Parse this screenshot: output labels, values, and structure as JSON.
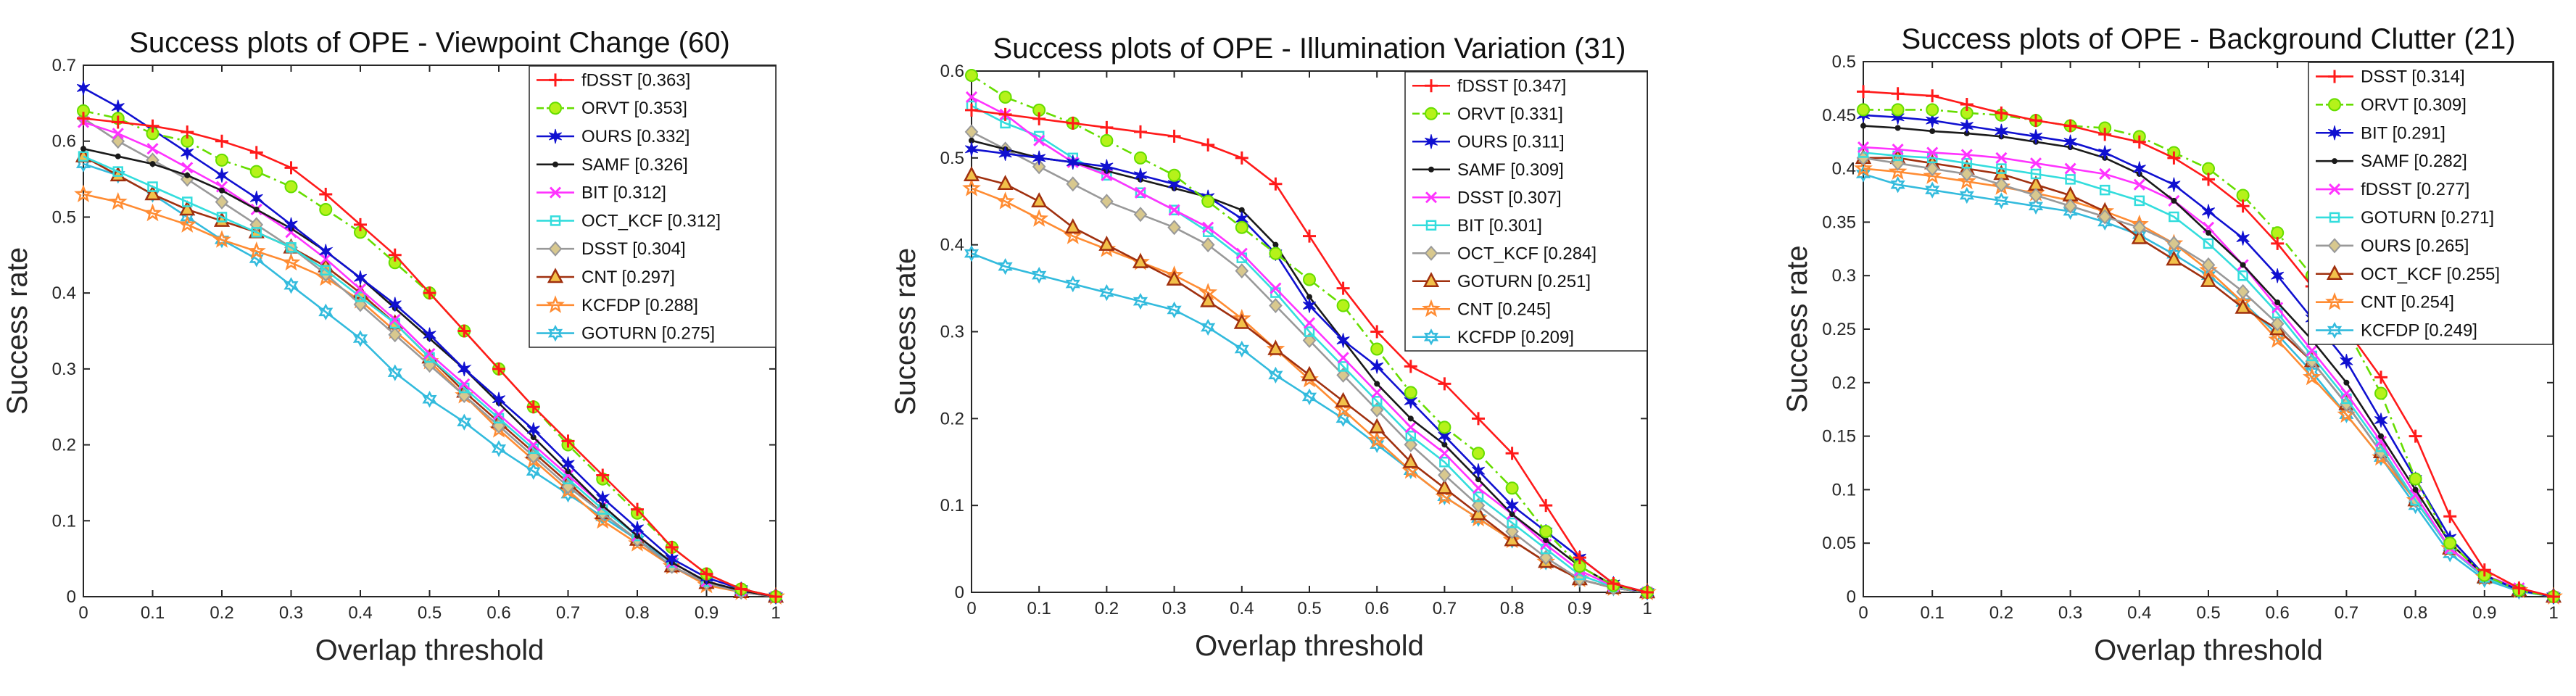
{
  "figure": {
    "panels_label": "success plots"
  },
  "chart_data": [
    {
      "type": "line",
      "title": "Success plots of OPE - Viewpoint Change (60)",
      "xlabel": "Overlap threshold",
      "ylabel": "Success rate",
      "xlim": [
        0,
        1
      ],
      "ylim": [
        0,
        0.7
      ],
      "xticks": [
        "0",
        "0.1",
        "0.2",
        "0.3",
        "0.4",
        "0.5",
        "0.6",
        "0.7",
        "0.8",
        "0.9",
        "1"
      ],
      "yticks": [
        "0",
        "0.1",
        "0.2",
        "0.3",
        "0.4",
        "0.5",
        "0.6",
        "0.7"
      ],
      "x": [
        0,
        0.05,
        0.1,
        0.15,
        0.2,
        0.25,
        0.3,
        0.35,
        0.4,
        0.45,
        0.5,
        0.55,
        0.6,
        0.65,
        0.7,
        0.75,
        0.8,
        0.85,
        0.9,
        0.95,
        1
      ],
      "legend_position": "top-right",
      "series": [
        {
          "name": "fDSST [0.363]",
          "color": "#ff1a1a",
          "marker": "plus",
          "dash": "solid",
          "values": [
            0.63,
            0.625,
            0.62,
            0.612,
            0.6,
            0.585,
            0.565,
            0.53,
            0.49,
            0.45,
            0.4,
            0.35,
            0.3,
            0.25,
            0.205,
            0.16,
            0.115,
            0.065,
            0.03,
            0.01,
            0
          ]
        },
        {
          "name": "ORVT [0.353]",
          "color": "#66dd00",
          "marker": "circle-filled",
          "dash": "dashdot",
          "values": [
            0.64,
            0.63,
            0.61,
            0.6,
            0.575,
            0.56,
            0.54,
            0.51,
            0.48,
            0.44,
            0.4,
            0.35,
            0.3,
            0.25,
            0.2,
            0.155,
            0.11,
            0.065,
            0.03,
            0.01,
            0
          ]
        },
        {
          "name": "OURS [0.332]",
          "color": "#1010d0",
          "marker": "star",
          "dash": "solid",
          "values": [
            0.67,
            0.645,
            0.615,
            0.585,
            0.555,
            0.525,
            0.49,
            0.455,
            0.42,
            0.385,
            0.345,
            0.3,
            0.26,
            0.22,
            0.175,
            0.13,
            0.09,
            0.05,
            0.025,
            0.01,
            0
          ]
        },
        {
          "name": "SAMF [0.326]",
          "color": "#1a1a1a",
          "marker": "dot",
          "dash": "solid",
          "values": [
            0.59,
            0.58,
            0.57,
            0.555,
            0.535,
            0.51,
            0.485,
            0.455,
            0.42,
            0.38,
            0.34,
            0.3,
            0.255,
            0.21,
            0.165,
            0.12,
            0.08,
            0.045,
            0.02,
            0.008,
            0
          ]
        },
        {
          "name": "BIT [0.312]",
          "color": "#ff33ff",
          "marker": "x",
          "dash": "solid",
          "values": [
            0.625,
            0.61,
            0.59,
            0.565,
            0.54,
            0.51,
            0.48,
            0.445,
            0.405,
            0.365,
            0.32,
            0.28,
            0.24,
            0.2,
            0.16,
            0.12,
            0.08,
            0.045,
            0.02,
            0.008,
            0
          ]
        },
        {
          "name": "OCT_KCF [0.312]",
          "color": "#33dddd",
          "marker": "square",
          "dash": "solid",
          "values": [
            0.58,
            0.56,
            0.54,
            0.52,
            0.5,
            0.48,
            0.46,
            0.43,
            0.395,
            0.36,
            0.315,
            0.275,
            0.235,
            0.195,
            0.155,
            0.115,
            0.08,
            0.045,
            0.02,
            0.008,
            0
          ]
        },
        {
          "name": "DSST [0.304]",
          "color": "#999999",
          "marker": "diamond",
          "dash": "solid",
          "values": [
            0.63,
            0.6,
            0.575,
            0.55,
            0.52,
            0.49,
            0.46,
            0.425,
            0.385,
            0.345,
            0.305,
            0.265,
            0.225,
            0.185,
            0.145,
            0.11,
            0.075,
            0.04,
            0.018,
            0.006,
            0
          ]
        },
        {
          "name": "CNT [0.297]",
          "color": "#a0300f",
          "marker": "triangle",
          "dash": "solid",
          "values": [
            0.58,
            0.555,
            0.53,
            0.51,
            0.495,
            0.48,
            0.46,
            0.435,
            0.4,
            0.36,
            0.315,
            0.27,
            0.23,
            0.19,
            0.15,
            0.11,
            0.075,
            0.04,
            0.018,
            0.006,
            0
          ]
        },
        {
          "name": "KCFDP [0.288]",
          "color": "#ff8c33",
          "marker": "pentagram",
          "dash": "solid",
          "values": [
            0.53,
            0.52,
            0.505,
            0.49,
            0.47,
            0.455,
            0.44,
            0.42,
            0.39,
            0.35,
            0.31,
            0.265,
            0.22,
            0.18,
            0.14,
            0.1,
            0.07,
            0.04,
            0.015,
            0.006,
            0
          ]
        },
        {
          "name": "GOTURN [0.275]",
          "color": "#33bbdd",
          "marker": "hexagram",
          "dash": "solid",
          "values": [
            0.57,
            0.555,
            0.53,
            0.5,
            0.47,
            0.445,
            0.41,
            0.375,
            0.34,
            0.295,
            0.26,
            0.23,
            0.195,
            0.165,
            0.135,
            0.105,
            0.075,
            0.045,
            0.02,
            0.008,
            0
          ]
        }
      ]
    },
    {
      "type": "line",
      "title": "Success plots of OPE - Illumination Variation (31)",
      "xlabel": "Overlap threshold",
      "ylabel": "Success rate",
      "xlim": [
        0,
        1
      ],
      "ylim": [
        0,
        0.6
      ],
      "xticks": [
        "0",
        "0.1",
        "0.2",
        "0.3",
        "0.4",
        "0.5",
        "0.6",
        "0.7",
        "0.8",
        "0.9",
        "1"
      ],
      "yticks": [
        "0",
        "0.1",
        "0.2",
        "0.3",
        "0.4",
        "0.5",
        "0.6"
      ],
      "x": [
        0,
        0.05,
        0.1,
        0.15,
        0.2,
        0.25,
        0.3,
        0.35,
        0.4,
        0.45,
        0.5,
        0.55,
        0.6,
        0.65,
        0.7,
        0.75,
        0.8,
        0.85,
        0.9,
        0.95,
        1
      ],
      "legend_position": "top-right",
      "series": [
        {
          "name": "fDSST [0.347]",
          "color": "#ff1a1a",
          "marker": "plus",
          "dash": "solid",
          "values": [
            0.555,
            0.55,
            0.545,
            0.54,
            0.535,
            0.53,
            0.525,
            0.515,
            0.5,
            0.47,
            0.41,
            0.35,
            0.3,
            0.26,
            0.24,
            0.2,
            0.16,
            0.1,
            0.04,
            0.01,
            0
          ]
        },
        {
          "name": "ORVT [0.331]",
          "color": "#66dd00",
          "marker": "circle-filled",
          "dash": "dashdot",
          "values": [
            0.595,
            0.57,
            0.555,
            0.54,
            0.52,
            0.5,
            0.48,
            0.45,
            0.42,
            0.39,
            0.36,
            0.33,
            0.28,
            0.23,
            0.19,
            0.16,
            0.12,
            0.07,
            0.03,
            0.008,
            0
          ]
        },
        {
          "name": "OURS [0.311]",
          "color": "#1010d0",
          "marker": "star",
          "dash": "solid",
          "values": [
            0.51,
            0.505,
            0.5,
            0.495,
            0.49,
            0.48,
            0.47,
            0.455,
            0.43,
            0.39,
            0.33,
            0.29,
            0.26,
            0.22,
            0.18,
            0.14,
            0.1,
            0.07,
            0.04,
            0.01,
            0
          ]
        },
        {
          "name": "SAMF [0.309]",
          "color": "#1a1a1a",
          "marker": "dot",
          "dash": "solid",
          "values": [
            0.52,
            0.51,
            0.5,
            0.495,
            0.485,
            0.475,
            0.465,
            0.455,
            0.44,
            0.4,
            0.34,
            0.29,
            0.24,
            0.2,
            0.17,
            0.13,
            0.09,
            0.06,
            0.03,
            0.008,
            0
          ]
        },
        {
          "name": "DSST [0.307]",
          "color": "#ff33ff",
          "marker": "x",
          "dash": "solid",
          "values": [
            0.57,
            0.55,
            0.52,
            0.495,
            0.48,
            0.46,
            0.44,
            0.42,
            0.39,
            0.35,
            0.31,
            0.27,
            0.23,
            0.19,
            0.16,
            0.12,
            0.09,
            0.055,
            0.025,
            0.007,
            0
          ]
        },
        {
          "name": "BIT [0.301]",
          "color": "#33dddd",
          "marker": "square",
          "dash": "solid",
          "values": [
            0.56,
            0.54,
            0.525,
            0.5,
            0.48,
            0.46,
            0.44,
            0.415,
            0.385,
            0.345,
            0.3,
            0.26,
            0.22,
            0.18,
            0.15,
            0.11,
            0.08,
            0.05,
            0.02,
            0.006,
            0
          ]
        },
        {
          "name": "OCT_KCF [0.284]",
          "color": "#999999",
          "marker": "diamond",
          "dash": "solid",
          "values": [
            0.53,
            0.51,
            0.49,
            0.47,
            0.45,
            0.435,
            0.42,
            0.4,
            0.37,
            0.33,
            0.29,
            0.25,
            0.21,
            0.17,
            0.135,
            0.1,
            0.07,
            0.04,
            0.015,
            0.005,
            0
          ]
        },
        {
          "name": "GOTURN [0.251]",
          "color": "#a0300f",
          "marker": "triangle",
          "dash": "solid",
          "values": [
            0.48,
            0.47,
            0.45,
            0.42,
            0.4,
            0.38,
            0.36,
            0.335,
            0.31,
            0.28,
            0.25,
            0.22,
            0.19,
            0.15,
            0.12,
            0.09,
            0.06,
            0.035,
            0.015,
            0.005,
            0
          ]
        },
        {
          "name": "CNT [0.245]",
          "color": "#ff8c33",
          "marker": "pentagram",
          "dash": "solid",
          "values": [
            0.465,
            0.45,
            0.43,
            0.41,
            0.395,
            0.38,
            0.365,
            0.345,
            0.315,
            0.28,
            0.245,
            0.21,
            0.175,
            0.14,
            0.11,
            0.085,
            0.06,
            0.035,
            0.015,
            0.005,
            0
          ]
        },
        {
          "name": "KCFDP [0.209]",
          "color": "#33bbdd",
          "marker": "hexagram",
          "dash": "solid",
          "values": [
            0.39,
            0.375,
            0.365,
            0.355,
            0.345,
            0.335,
            0.325,
            0.305,
            0.28,
            0.25,
            0.225,
            0.2,
            0.17,
            0.14,
            0.11,
            0.085,
            0.06,
            0.035,
            0.015,
            0.005,
            0
          ]
        }
      ]
    },
    {
      "type": "line",
      "title": "Success plots of OPE - Background Clutter (21)",
      "xlabel": "Overlap threshold",
      "ylabel": "Success rate",
      "xlim": [
        0,
        1
      ],
      "ylim": [
        0,
        0.5
      ],
      "xticks": [
        "0",
        "0.1",
        "0.2",
        "0.3",
        "0.4",
        "0.5",
        "0.6",
        "0.7",
        "0.8",
        "0.9",
        "1"
      ],
      "yticks": [
        "0",
        "0.05",
        "0.1",
        "0.15",
        "0.2",
        "0.25",
        "0.3",
        "0.35",
        "0.4",
        "0.45",
        "0.5"
      ],
      "x": [
        0,
        0.05,
        0.1,
        0.15,
        0.2,
        0.25,
        0.3,
        0.35,
        0.4,
        0.45,
        0.5,
        0.55,
        0.6,
        0.65,
        0.7,
        0.75,
        0.8,
        0.85,
        0.9,
        0.95,
        1
      ],
      "legend_position": "top-right",
      "series": [
        {
          "name": "DSST [0.314]",
          "color": "#ff1a1a",
          "marker": "plus",
          "dash": "solid",
          "values": [
            0.472,
            0.47,
            0.468,
            0.46,
            0.452,
            0.445,
            0.44,
            0.432,
            0.425,
            0.41,
            0.39,
            0.365,
            0.33,
            0.29,
            0.25,
            0.205,
            0.15,
            0.075,
            0.025,
            0.008,
            0
          ]
        },
        {
          "name": "ORVT [0.309]",
          "color": "#66dd00",
          "marker": "circle-filled",
          "dash": "dashdot",
          "values": [
            0.455,
            0.455,
            0.455,
            0.452,
            0.45,
            0.445,
            0.44,
            0.438,
            0.43,
            0.415,
            0.4,
            0.375,
            0.34,
            0.3,
            0.25,
            0.19,
            0.11,
            0.05,
            0.02,
            0.006,
            0
          ]
        },
        {
          "name": "BIT [0.291]",
          "color": "#1010d0",
          "marker": "star",
          "dash": "solid",
          "values": [
            0.45,
            0.448,
            0.445,
            0.44,
            0.435,
            0.43,
            0.425,
            0.415,
            0.4,
            0.385,
            0.36,
            0.335,
            0.3,
            0.26,
            0.22,
            0.165,
            0.11,
            0.055,
            0.02,
            0.006,
            0
          ]
        },
        {
          "name": "SAMF [0.282]",
          "color": "#1a1a1a",
          "marker": "dot",
          "dash": "solid",
          "values": [
            0.44,
            0.438,
            0.435,
            0.433,
            0.43,
            0.425,
            0.42,
            0.41,
            0.395,
            0.37,
            0.34,
            0.31,
            0.275,
            0.24,
            0.2,
            0.15,
            0.1,
            0.05,
            0.02,
            0.006,
            0
          ]
        },
        {
          "name": "fDSST [0.277]",
          "color": "#ff33ff",
          "marker": "x",
          "dash": "solid",
          "values": [
            0.42,
            0.418,
            0.415,
            0.413,
            0.41,
            0.405,
            0.4,
            0.395,
            0.385,
            0.37,
            0.345,
            0.31,
            0.27,
            0.23,
            0.19,
            0.145,
            0.095,
            0.045,
            0.02,
            0.008,
            0
          ]
        },
        {
          "name": "GOTURN [0.271]",
          "color": "#33dddd",
          "marker": "square",
          "dash": "solid",
          "values": [
            0.415,
            0.412,
            0.41,
            0.405,
            0.4,
            0.395,
            0.39,
            0.38,
            0.37,
            0.355,
            0.33,
            0.3,
            0.265,
            0.225,
            0.185,
            0.14,
            0.09,
            0.045,
            0.018,
            0.006,
            0
          ]
        },
        {
          "name": "OURS [0.265]",
          "color": "#999999",
          "marker": "diamond",
          "dash": "solid",
          "values": [
            0.41,
            0.405,
            0.4,
            0.395,
            0.385,
            0.375,
            0.365,
            0.355,
            0.345,
            0.33,
            0.31,
            0.285,
            0.255,
            0.22,
            0.18,
            0.135,
            0.09,
            0.045,
            0.018,
            0.006,
            0
          ]
        },
        {
          "name": "OCT_KCF [0.255]",
          "color": "#a0300f",
          "marker": "triangle",
          "dash": "solid",
          "values": [
            0.41,
            0.41,
            0.405,
            0.4,
            0.395,
            0.385,
            0.375,
            0.36,
            0.335,
            0.315,
            0.295,
            0.27,
            0.25,
            0.22,
            0.18,
            0.135,
            0.09,
            0.045,
            0.018,
            0.006,
            0
          ]
        },
        {
          "name": "CNT [0.254]",
          "color": "#ff8c33",
          "marker": "pentagram",
          "dash": "solid",
          "values": [
            0.4,
            0.397,
            0.393,
            0.388,
            0.383,
            0.377,
            0.37,
            0.36,
            0.348,
            0.33,
            0.305,
            0.275,
            0.24,
            0.205,
            0.17,
            0.13,
            0.09,
            0.045,
            0.018,
            0.006,
            0
          ]
        },
        {
          "name": "KCFDP [0.249]",
          "color": "#33bbdd",
          "marker": "hexagram",
          "dash": "solid",
          "values": [
            0.395,
            0.385,
            0.38,
            0.375,
            0.37,
            0.365,
            0.36,
            0.35,
            0.338,
            0.32,
            0.3,
            0.275,
            0.245,
            0.21,
            0.17,
            0.13,
            0.085,
            0.04,
            0.016,
            0.005,
            0
          ]
        }
      ]
    }
  ]
}
